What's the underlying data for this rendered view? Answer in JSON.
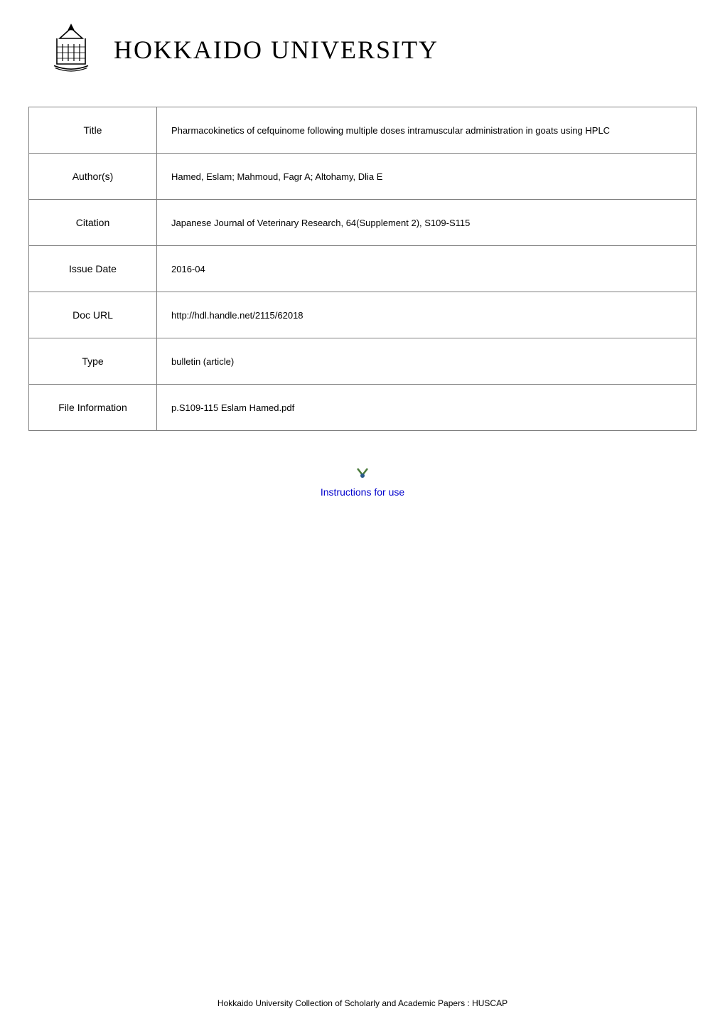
{
  "header": {
    "university_name": "HOKKAIDO UNIVERSITY"
  },
  "metadata": {
    "rows": [
      {
        "label": "Title",
        "value": "Pharmacokinetics of cefquinome following multiple doses intramuscular administration in goats using HPLC"
      },
      {
        "label": "Author(s)",
        "value": "Hamed, Eslam; Mahmoud, Fagr A; Altohamy, Dlia E"
      },
      {
        "label": "Citation",
        "value": "Japanese Journal of Veterinary Research, 64(Supplement 2), S109-S115"
      },
      {
        "label": "Issue Date",
        "value": "2016-04"
      },
      {
        "label": "Doc URL",
        "value": "http://hdl.handle.net/2115/62018"
      },
      {
        "label": "Type",
        "value": "bulletin (article)"
      },
      {
        "label": "File Information",
        "value": "p.S109-115 Eslam Hamed.pdf"
      }
    ]
  },
  "instructions": {
    "link_text": "Instructions for use"
  },
  "footer": {
    "text": "Hokkaido University Collection of Scholarly and Academic Papers : HUSCAP"
  },
  "colors": {
    "border": "#808080",
    "link": "#0000cc",
    "arrow": "#4a7a3a",
    "background": "#ffffff",
    "text": "#000000"
  }
}
